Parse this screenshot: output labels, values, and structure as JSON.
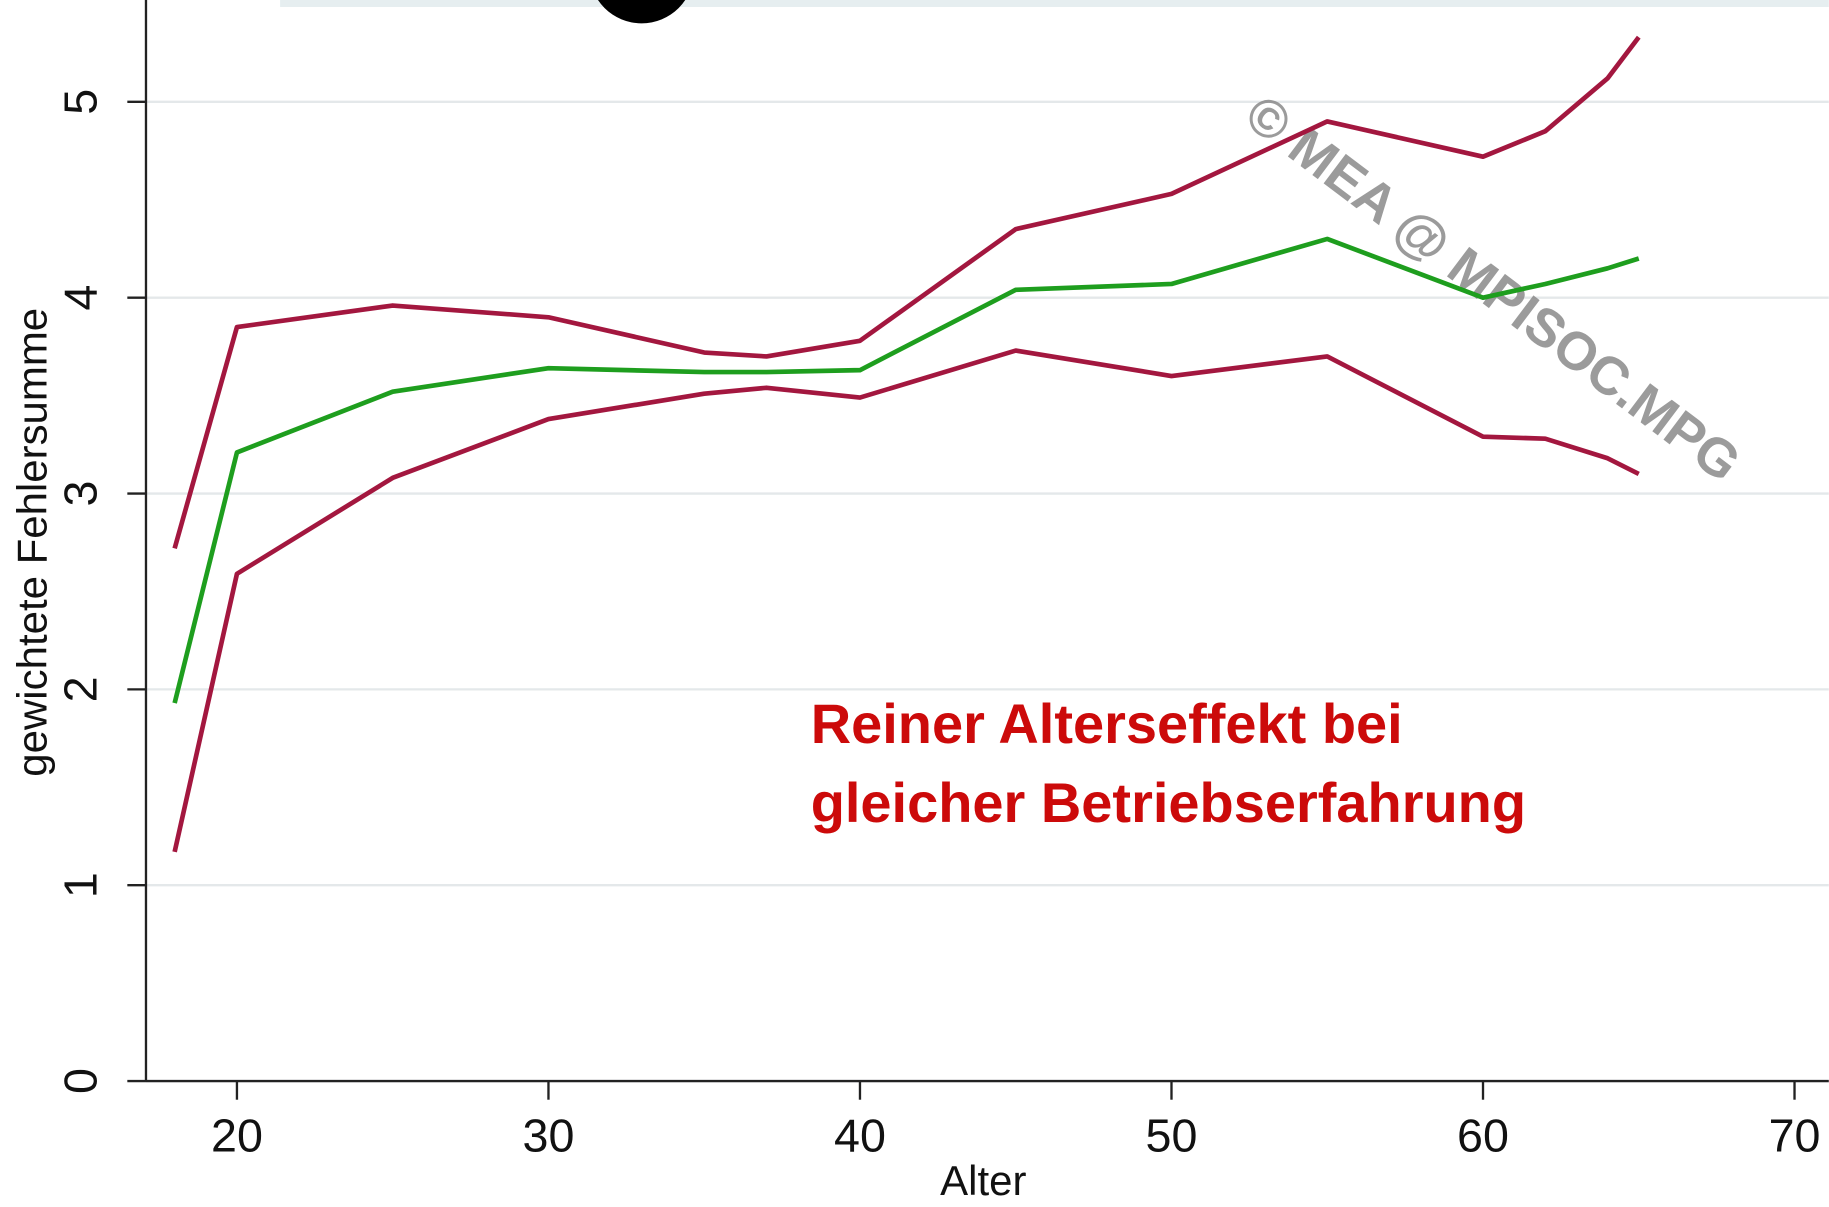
{
  "chart_data": {
    "type": "line",
    "x": [
      18,
      20,
      25,
      30,
      35,
      37,
      40,
      45,
      50,
      55,
      60,
      62,
      64,
      65
    ],
    "series": [
      {
        "color": "#a3173f",
        "values": [
          2.72,
          3.85,
          3.96,
          3.9,
          3.72,
          3.7,
          3.78,
          4.35,
          4.53,
          4.9,
          4.72,
          4.85,
          5.12,
          5.33
        ]
      },
      {
        "color": "#1e9e1e",
        "values": [
          1.93,
          3.21,
          3.52,
          3.64,
          3.62,
          3.62,
          3.63,
          4.04,
          4.07,
          4.3,
          4.0,
          4.07,
          4.15,
          4.2
        ]
      },
      {
        "color": "#a3173f",
        "values": [
          1.17,
          2.59,
          3.08,
          3.38,
          3.51,
          3.54,
          3.49,
          3.73,
          3.6,
          3.7,
          3.29,
          3.28,
          3.18,
          3.1
        ]
      }
    ],
    "xlim": [
      17.08,
      71.1
    ],
    "ylim": [
      0,
      5.52
    ],
    "xticks": [
      20,
      30,
      40,
      50,
      60,
      70
    ],
    "yticks": [
      0,
      1,
      2,
      3,
      4,
      5
    ],
    "grid": true,
    "xlabel": "Alter",
    "ylabel": "gewichtete Fehlersumme",
    "annotation": [
      "Reiner Alterseffekt bei",
      "gleicher Betriebserfahrung"
    ],
    "watermark": "© MEA @ MPISOC.MPG"
  }
}
